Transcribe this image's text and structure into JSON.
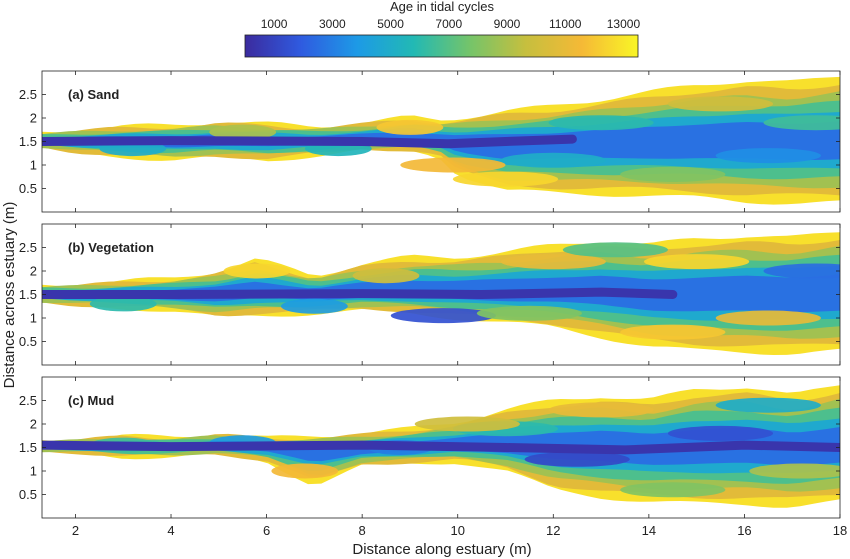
{
  "colorbar": {
    "title": "Age in tidal cycles",
    "range": [
      0,
      13500
    ],
    "ticks": [
      1000,
      3000,
      5000,
      7000,
      9000,
      11000,
      13000
    ],
    "tick_labels": [
      "1000",
      "3000",
      "5000",
      "7000",
      "9000",
      "11000",
      "13000"
    ],
    "colors": [
      "#3b2b9e",
      "#2f5be0",
      "#1d9ae6",
      "#22b9b4",
      "#74c46a",
      "#c6bf3e",
      "#f5b936",
      "#f9f626"
    ]
  },
  "chart_data": {
    "type": "heatmap",
    "colormap": "parula",
    "xlabel": "Distance along estuary (m)",
    "ylabel": "Distance across estuary (m)",
    "xlim": [
      1.3,
      18
    ],
    "ylim": [
      0,
      3
    ],
    "x_ticks": [
      2,
      4,
      6,
      8,
      10,
      12,
      14,
      16,
      18
    ],
    "x_tick_labels": [
      "2",
      "4",
      "6",
      "8",
      "10",
      "12",
      "14",
      "16",
      "18"
    ],
    "y_ticks": [
      0.5,
      1,
      1.5,
      2,
      2.5
    ],
    "y_tick_labels": [
      "0.5",
      "1",
      "1.5",
      "2",
      "2.5"
    ],
    "panels": [
      {
        "label": "(a) Sand",
        "envelope": {
          "x": [
            1.3,
            2,
            3,
            4,
            5,
            6,
            7,
            8,
            9,
            9.6,
            10,
            11,
            12,
            13,
            14,
            15,
            16,
            17,
            18
          ],
          "upper": [
            1.7,
            1.75,
            1.82,
            1.85,
            1.92,
            1.88,
            1.82,
            1.9,
            2.02,
            1.95,
            2.0,
            2.15,
            2.25,
            2.4,
            2.55,
            2.7,
            2.8,
            2.75,
            2.9
          ],
          "lower": [
            1.35,
            1.25,
            1.18,
            1.1,
            1.15,
            1.1,
            1.2,
            1.3,
            1.3,
            1.2,
            0.8,
            0.45,
            0.4,
            0.38,
            0.35,
            0.3,
            0.22,
            0.2,
            0.2
          ]
        },
        "channel": [
          {
            "x": 1.3,
            "y": 1.5
          },
          {
            "x": 4,
            "y": 1.52
          },
          {
            "x": 8,
            "y": 1.5
          },
          {
            "x": 9.8,
            "y": 1.45
          },
          {
            "x": 11,
            "y": 1.5
          },
          {
            "x": 12.4,
            "y": 1.55
          }
        ],
        "patches": [
          {
            "x": 9.9,
            "y": 1.0,
            "age": 11500
          },
          {
            "x": 11,
            "y": 0.7,
            "age": 12500
          },
          {
            "x": 13,
            "y": 1.9,
            "age": 6000
          },
          {
            "x": 15.5,
            "y": 2.3,
            "age": 10000
          },
          {
            "x": 16.5,
            "y": 1.2,
            "age": 3500
          },
          {
            "x": 14.5,
            "y": 0.8,
            "age": 8000
          },
          {
            "x": 12,
            "y": 1.1,
            "age": 5000
          },
          {
            "x": 17.5,
            "y": 1.9,
            "age": 6500
          },
          {
            "x": 3.2,
            "y": 1.35,
            "age": 5000
          },
          {
            "x": 5.5,
            "y": 1.7,
            "age": 9000
          },
          {
            "x": 7.5,
            "y": 1.35,
            "age": 5500
          },
          {
            "x": 9,
            "y": 1.8,
            "age": 12000
          }
        ]
      },
      {
        "label": "(b) Vegetation",
        "envelope": {
          "x": [
            1.3,
            2,
            3,
            4,
            5,
            5.8,
            7,
            8,
            9,
            10,
            11,
            12,
            13,
            14,
            15,
            16,
            17,
            18
          ],
          "upper": [
            1.7,
            1.72,
            1.78,
            1.85,
            2.0,
            2.25,
            1.9,
            2.15,
            2.3,
            2.3,
            2.4,
            2.55,
            2.65,
            2.55,
            2.7,
            2.75,
            2.7,
            2.85
          ],
          "lower": [
            1.3,
            1.25,
            1.22,
            1.15,
            1.0,
            1.05,
            1.1,
            1.15,
            1.1,
            1.0,
            0.9,
            0.8,
            0.6,
            0.4,
            0.3,
            0.28,
            0.25,
            0.3
          ]
        },
        "channel": [
          {
            "x": 1.3,
            "y": 1.5
          },
          {
            "x": 4,
            "y": 1.5
          },
          {
            "x": 8,
            "y": 1.52
          },
          {
            "x": 10.5,
            "y": 1.5
          },
          {
            "x": 13,
            "y": 1.55
          },
          {
            "x": 14.5,
            "y": 1.5
          }
        ],
        "patches": [
          {
            "x": 9.7,
            "y": 1.05,
            "age": 1500
          },
          {
            "x": 12,
            "y": 2.2,
            "age": 11000
          },
          {
            "x": 13.3,
            "y": 2.45,
            "age": 7000
          },
          {
            "x": 15,
            "y": 2.2,
            "age": 12500
          },
          {
            "x": 16.5,
            "y": 1.0,
            "age": 11000
          },
          {
            "x": 14.5,
            "y": 0.7,
            "age": 12000
          },
          {
            "x": 11.5,
            "y": 1.1,
            "age": 8000
          },
          {
            "x": 17.5,
            "y": 2.0,
            "age": 2500
          },
          {
            "x": 5.8,
            "y": 2.0,
            "age": 12500
          },
          {
            "x": 3,
            "y": 1.3,
            "age": 6000
          },
          {
            "x": 8.5,
            "y": 1.9,
            "age": 10000
          },
          {
            "x": 7,
            "y": 1.25,
            "age": 4000
          }
        ]
      },
      {
        "label": "(c) Mud",
        "envelope": {
          "x": [
            1.3,
            2,
            3,
            4,
            5,
            6,
            7,
            8,
            9,
            10,
            11,
            12,
            13,
            14,
            15,
            16,
            17,
            18
          ],
          "upper": [
            1.65,
            1.68,
            1.75,
            1.72,
            1.8,
            1.7,
            1.75,
            1.8,
            1.9,
            2.05,
            2.3,
            2.5,
            2.6,
            2.5,
            2.75,
            2.8,
            2.6,
            2.85
          ],
          "lower": [
            1.4,
            1.38,
            1.3,
            1.3,
            1.35,
            1.2,
            0.7,
            1.1,
            1.15,
            1.2,
            1.0,
            0.6,
            0.45,
            0.35,
            0.3,
            0.3,
            0.25,
            0.35
          ]
        },
        "channel": [
          {
            "x": 1.3,
            "y": 1.55
          },
          {
            "x": 4,
            "y": 1.52
          },
          {
            "x": 8,
            "y": 1.55
          },
          {
            "x": 11,
            "y": 1.5
          },
          {
            "x": 13.5,
            "y": 1.45
          },
          {
            "x": 16,
            "y": 1.55
          },
          {
            "x": 18,
            "y": 1.5
          }
        ],
        "patches": [
          {
            "x": 6.8,
            "y": 1.0,
            "age": 11500
          },
          {
            "x": 12.5,
            "y": 1.25,
            "age": 1200
          },
          {
            "x": 15.5,
            "y": 1.8,
            "age": 1500
          },
          {
            "x": 13,
            "y": 2.3,
            "age": 11000
          },
          {
            "x": 14.5,
            "y": 0.6,
            "age": 8000
          },
          {
            "x": 16.5,
            "y": 2.4,
            "age": 5000
          },
          {
            "x": 11,
            "y": 1.9,
            "age": 6000
          },
          {
            "x": 17.2,
            "y": 1.0,
            "age": 9000
          },
          {
            "x": 3,
            "y": 1.55,
            "age": 6500
          },
          {
            "x": 8.8,
            "y": 1.5,
            "age": 3000
          },
          {
            "x": 10.2,
            "y": 2.0,
            "age": 10000
          },
          {
            "x": 5.5,
            "y": 1.6,
            "age": 4000
          }
        ]
      }
    ]
  }
}
